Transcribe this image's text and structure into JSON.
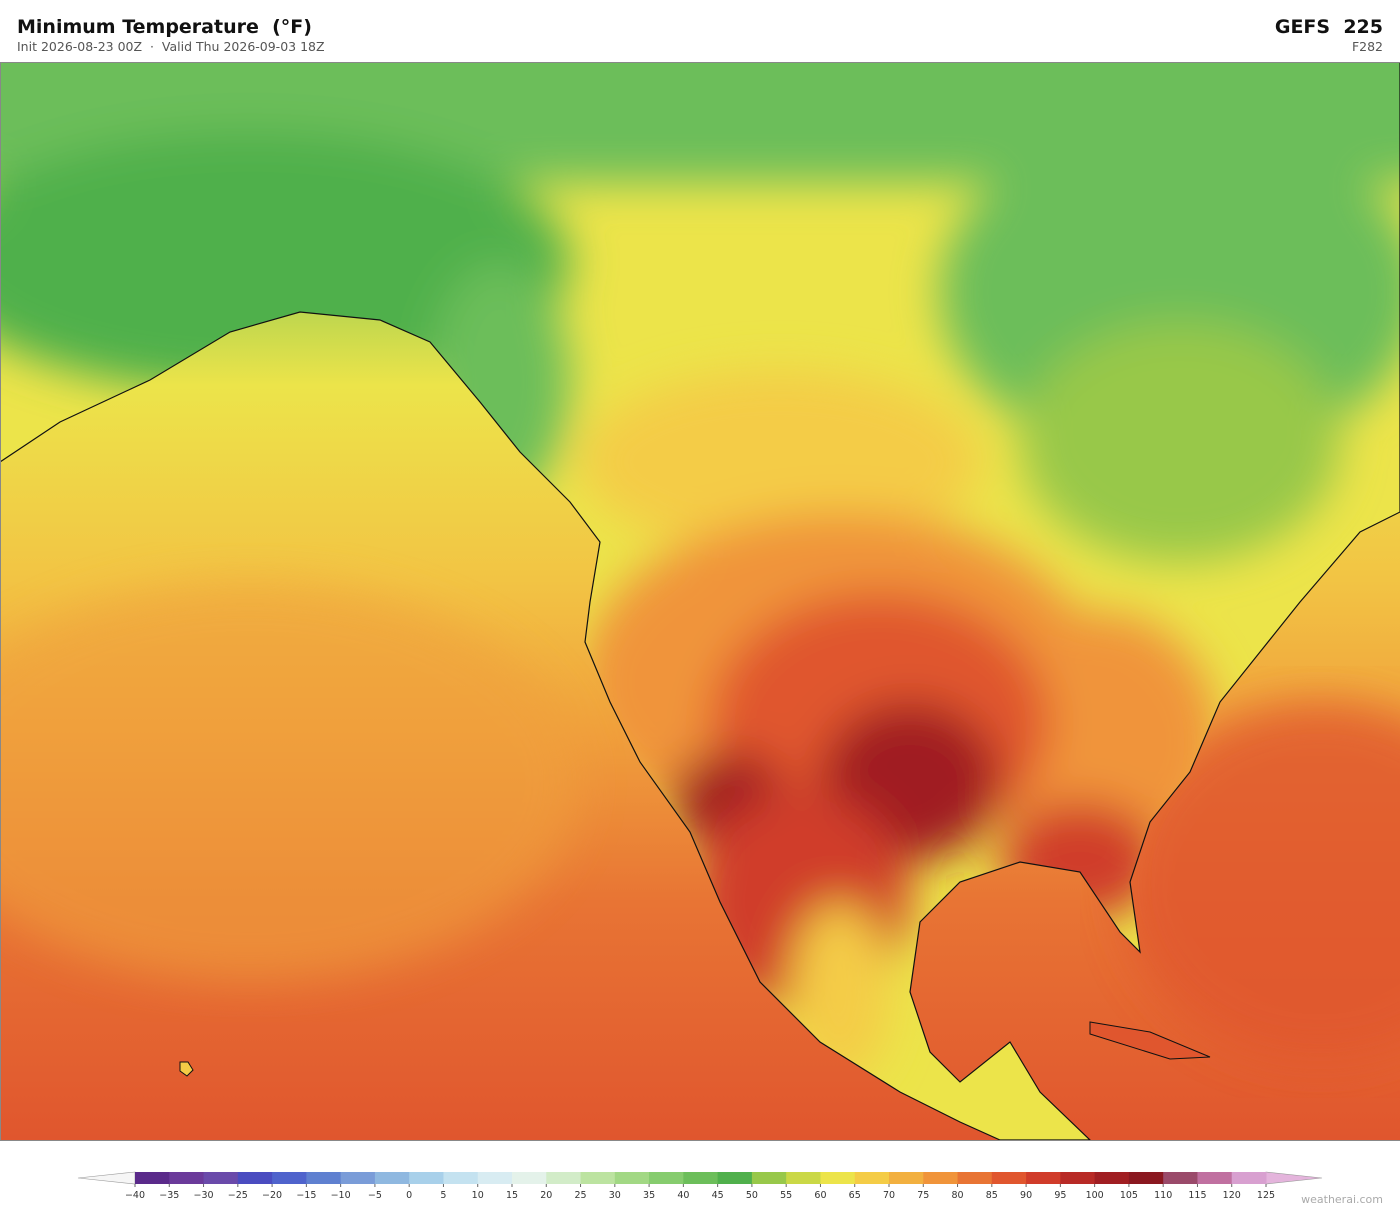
{
  "header": {
    "title": "Minimum Temperature  (°F)",
    "subtitle": "Init 2026-08-23 00Z  ·  Valid Thu 2026-09-03 18Z",
    "model": "GEFS  225",
    "forecast_hour": "F282"
  },
  "colorbar": {
    "ticks": [
      {
        "value": -40,
        "label": "−40"
      },
      {
        "value": -35,
        "label": "−35"
      },
      {
        "value": -30,
        "label": "−30"
      },
      {
        "value": -25,
        "label": "−25"
      },
      {
        "value": -20,
        "label": "−20"
      },
      {
        "value": -15,
        "label": "−15"
      },
      {
        "value": -10,
        "label": "−10"
      },
      {
        "value": -5,
        "label": "−5"
      },
      0,
      5,
      10,
      15,
      20,
      25,
      30,
      35,
      40,
      45,
      50,
      55,
      60,
      65,
      70,
      75,
      80,
      85,
      90,
      95,
      100,
      105,
      110,
      115,
      120,
      125
    ],
    "colors": [
      "#5a2a8a",
      "#6b3a9a",
      "#6a4aaa",
      "#4a4cc0",
      "#4f63cc",
      "#5f80d0",
      "#7a9cd8",
      "#8fb8e0",
      "#a8d0ea",
      "#c4e2f0",
      "#d8ecf2",
      "#e4f2ea",
      "#d2ecc8",
      "#bce3a0",
      "#a2d884",
      "#86cc6e",
      "#6cbe5a",
      "#50b04c",
      "#98c84a",
      "#cad846",
      "#ece44a",
      "#f4cc46",
      "#f2b040",
      "#f0943a",
      "#e87434",
      "#e0562e",
      "#d03c2a",
      "#b82a26",
      "#a01e22",
      "#8a1820",
      "#9a4a6a",
      "#c070a0",
      "#d8a0d0"
    ],
    "under_color": "#f6f6f6",
    "over_color": "#e4b4dc"
  },
  "footer": {
    "watermark": "weatherai.com"
  }
}
